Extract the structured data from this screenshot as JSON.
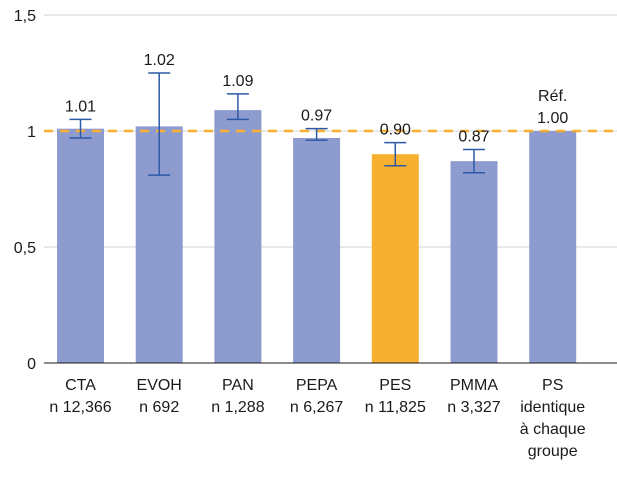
{
  "chart_data": {
    "type": "bar",
    "categories": [
      "CTA",
      "EVOH",
      "PAN",
      "PEPA",
      "PES",
      "PMMA",
      "PS"
    ],
    "sublabels": [
      [
        "n 12,366"
      ],
      [
        "n 692"
      ],
      [
        "n 1,288"
      ],
      [
        "n 6,267"
      ],
      [
        "n 11,825"
      ],
      [
        "n 3,327"
      ],
      [
        "identique",
        "à chaque",
        "groupe"
      ]
    ],
    "values": [
      1.01,
      1.02,
      1.09,
      0.97,
      0.9,
      0.87,
      1.0
    ],
    "value_labels": [
      [
        "1.01"
      ],
      [
        "1.02"
      ],
      [
        "1.09"
      ],
      [
        "0.97"
      ],
      [
        "0.90"
      ],
      [
        "0.87"
      ],
      [
        "Réf.",
        "1.00"
      ]
    ],
    "error_low": [
      0.97,
      0.81,
      1.05,
      0.96,
      0.85,
      0.82,
      null
    ],
    "error_high": [
      1.05,
      1.25,
      1.16,
      1.01,
      0.95,
      0.92,
      null
    ],
    "highlight_index": 4,
    "reference_line": 1,
    "ylim": [
      0,
      1.5
    ],
    "yticks": [
      0,
      0.5,
      1,
      1.5
    ],
    "ytick_labels": [
      "0",
      "0,5",
      "1",
      "1,5"
    ],
    "grid": true,
    "title": "",
    "xlabel": "",
    "ylabel": "",
    "colors": {
      "bar": "#8e9bce",
      "highlight": "#f7b02f",
      "highlight_text": "#f7b02f",
      "error_bar": "#2d5aa6",
      "reference_line": "#f7b02f",
      "grid": "#d3d3d3",
      "axis": "#1a1a1a"
    }
  }
}
